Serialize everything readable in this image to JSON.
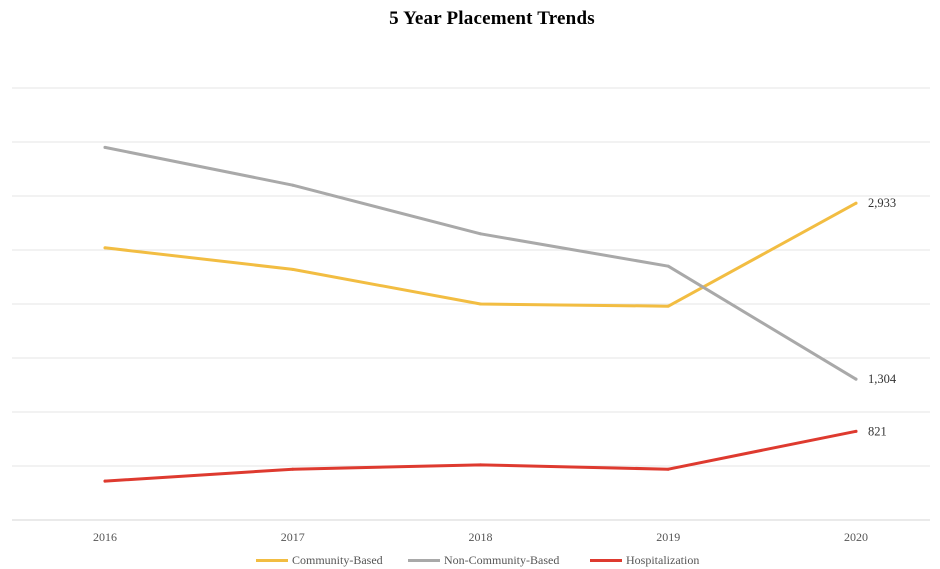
{
  "chart_data": {
    "type": "line",
    "title": "5 Year Placement Trends",
    "xlabel": "",
    "ylabel": "",
    "categories": [
      "2016",
      "2017",
      "2018",
      "2019",
      "2020"
    ],
    "ylim": [
      0,
      4000
    ],
    "grid": true,
    "legend_position": "bottom",
    "series": [
      {
        "name": "Community-Based",
        "color": "#F2BD42",
        "values": [
          2520,
          2320,
          2000,
          1980,
          2933
        ],
        "labels": [
          "",
          "",
          "",
          "",
          "2,933"
        ]
      },
      {
        "name": "Non-Community-Based",
        "color": "#A9A9A9",
        "values": [
          3450,
          3100,
          2650,
          2350,
          1304
        ],
        "labels": [
          "",
          "",
          "",
          "",
          "1,304"
        ]
      },
      {
        "name": "Hospitalization",
        "color": "#DE3A2F",
        "values": [
          360,
          470,
          510,
          470,
          821
        ],
        "labels": [
          "",
          "",
          "",
          "",
          "821"
        ]
      }
    ]
  }
}
